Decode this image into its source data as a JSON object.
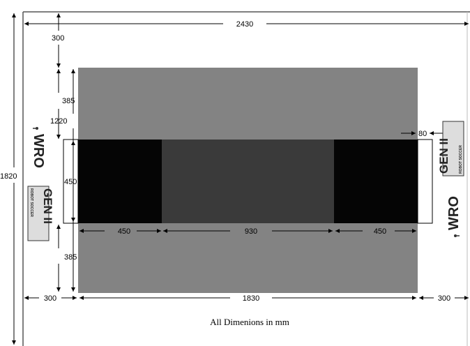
{
  "dimensions": {
    "total_width": "2430",
    "total_height": "1820",
    "top_margin": "300",
    "upper_zone_height": "385",
    "field_height": "1220",
    "goal_depth": "80",
    "center_band_height": "450",
    "lower_zone_height": "385",
    "left_segment": "450",
    "center_segment": "930",
    "right_segment": "450",
    "left_margin": "300",
    "field_width": "1830",
    "right_margin": "300"
  },
  "caption": "All Dimenions in mm",
  "logos": {
    "wro_text": "WRO",
    "gen_text": "GEN II",
    "gen_subtext": "ROBOT SOCCER"
  },
  "colors": {
    "field_gray": "#838383",
    "center_dark": "#3a3a3a",
    "penalty_black": "#050505",
    "line": "#000000",
    "border": "#555555"
  }
}
